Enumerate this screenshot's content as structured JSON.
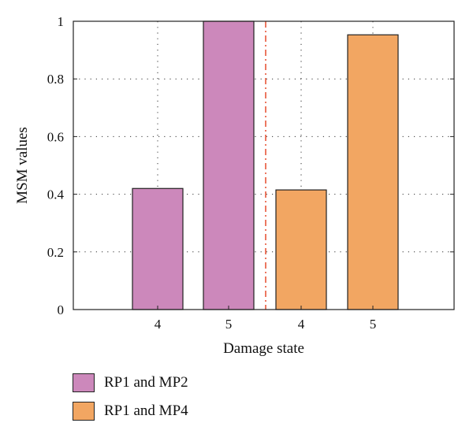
{
  "chart_data": {
    "type": "bar",
    "xlabel": "Damage state",
    "ylabel": "MSM values",
    "ylim": [
      0,
      1
    ],
    "yticks": [
      "0",
      "0.2",
      "0.4",
      "0.6",
      "0.8",
      "1"
    ],
    "grid": "dotted",
    "separator": "dash-dot vertical line between the two groups",
    "series": [
      {
        "name": "RP1 and MP2",
        "color": "#cc88bb",
        "categories": [
          "4",
          "5"
        ],
        "values": [
          0.42,
          1.0
        ]
      },
      {
        "name": "RP1 and MP4",
        "color": "#f2a662",
        "categories": [
          "4",
          "5"
        ],
        "values": [
          0.415,
          0.953
        ]
      }
    ],
    "legend_position": "bottom-left"
  }
}
